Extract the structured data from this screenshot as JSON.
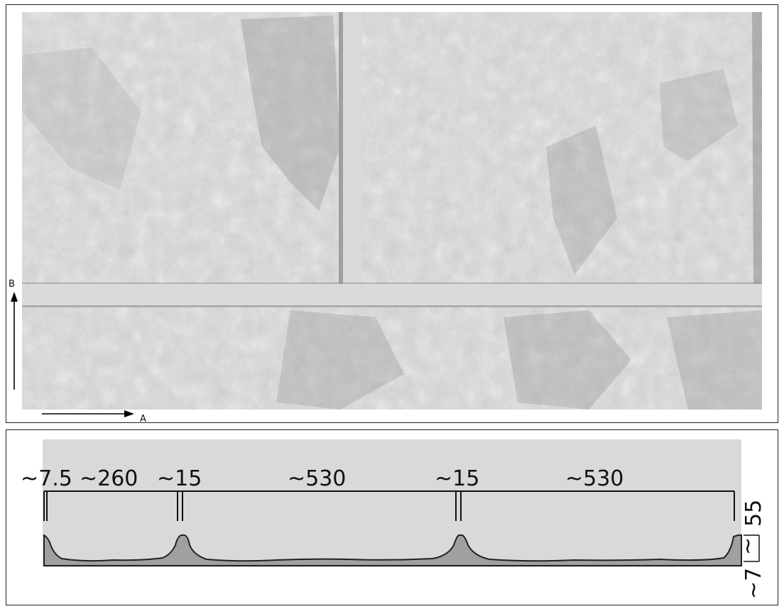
{
  "top_view": {
    "axis_a_label": "A",
    "axis_b_label": "B"
  },
  "profile": {
    "dims": {
      "edge": "~7.5",
      "first_stone": "~260",
      "joint_1": "~15",
      "stone_2": "~530",
      "joint_2": "~15",
      "stone_3": "~530"
    },
    "height_total": "55",
    "height_relief": "~7",
    "height_relief_bracket": "~",
    "height_relief_bracket_2": "7"
  },
  "colors": {
    "stone": "#dcdcdc",
    "joint": "#d6d6d6",
    "profile_fill": "#9a9a9a",
    "background_band": "#d9d9d9"
  }
}
